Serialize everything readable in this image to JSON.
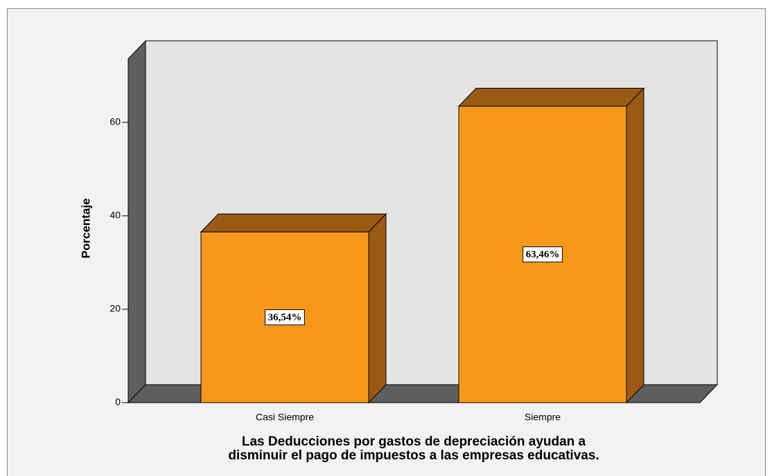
{
  "chart_data": {
    "type": "bar3d",
    "categories": [
      "Casi Siempre",
      "Siempre"
    ],
    "values": [
      36.54,
      63.46
    ],
    "value_labels": [
      "36,54%",
      "63,46%"
    ],
    "color": "#f7981d",
    "ylabel": "Porcentaje",
    "xlabel": [
      "Las Deducciones por gastos de depreciación ayudan a",
      "disminuir el pago de impuestos a las empresas educativas."
    ],
    "ylim": [
      0,
      73.6
    ],
    "yticks": [
      0,
      20,
      40,
      60
    ]
  }
}
